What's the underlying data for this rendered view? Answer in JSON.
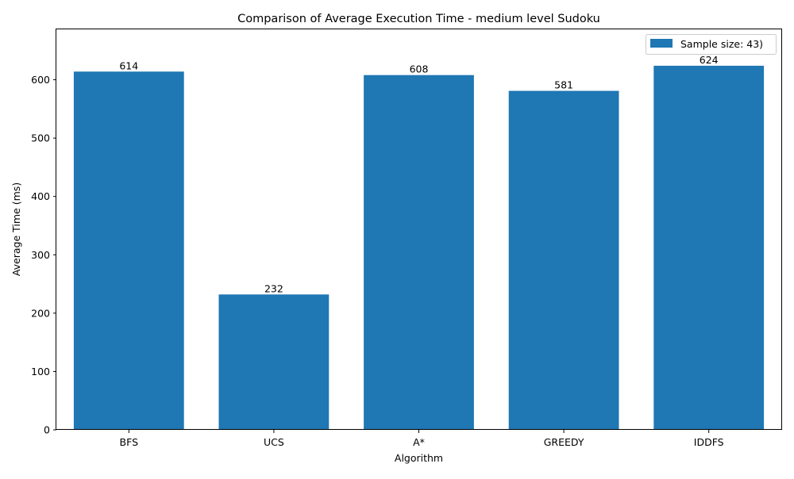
{
  "chart_data": {
    "type": "bar",
    "title": "Comparison of Average Execution Time - medium level Sudoku",
    "xlabel": "Algorithm",
    "ylabel": "Average Time (ms)",
    "categories": [
      "BFS",
      "UCS",
      "A*",
      "GREEDY",
      "IDDFS"
    ],
    "series": [
      {
        "name": "Sample size: 43)",
        "values": [
          614,
          232,
          608,
          581,
          624
        ],
        "color": "#1f77b4"
      }
    ],
    "data_labels": [
      "614",
      "232",
      "608",
      "581",
      "624"
    ],
    "ylim": [
      0,
      686.4
    ],
    "yticks": [
      0,
      100,
      200,
      300,
      400,
      500,
      600
    ],
    "grid": false,
    "legend_position": "top-right"
  }
}
